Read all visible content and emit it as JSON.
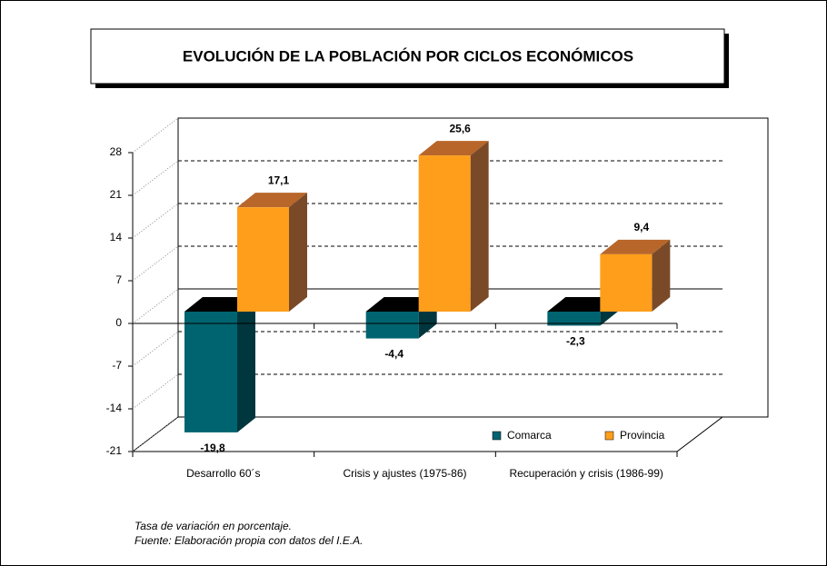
{
  "chart_data": {
    "type": "bar3d",
    "title": "EVOLUCIÓN DE LA POBLACIÓN POR CICLOS ECONÓMICOS",
    "categories": [
      "Desarrollo 60´s",
      "Crisis y ajustes (1975-86)",
      "Recuperación y crisis (1986-99)"
    ],
    "series": [
      {
        "name": "Comarca",
        "color": "#006470",
        "values": [
          -19.8,
          -4.4,
          -2.3
        ],
        "value_labels": [
          "-19,8",
          "-4,4",
          "-2,3"
        ]
      },
      {
        "name": "Provincia",
        "color": "#ff9e1b",
        "values": [
          17.1,
          25.6,
          9.4
        ],
        "value_labels": [
          "17,1",
          "25,6",
          "9,4"
        ]
      }
    ],
    "ylim": [
      -21,
      28
    ],
    "yticks": [
      28,
      21,
      14,
      7,
      0,
      -7,
      -14,
      -21
    ],
    "grid": true,
    "legend": "lower right",
    "notes": [
      "Tasa de variación en porcentaje.",
      "Fuente: Elaboración propia con datos del I.E.A."
    ]
  }
}
